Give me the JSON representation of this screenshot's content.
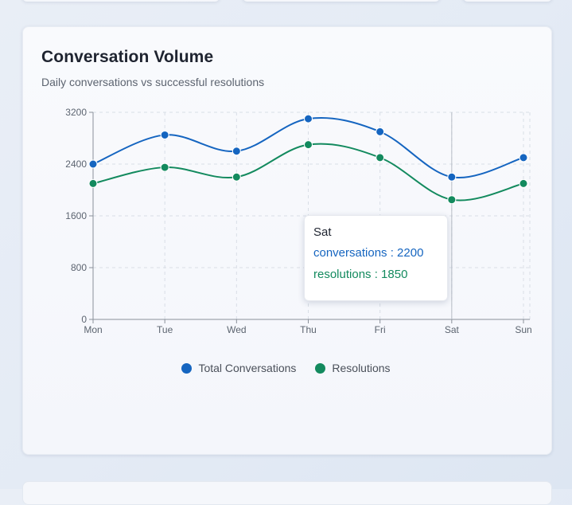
{
  "card": {
    "title": "Conversation Volume",
    "subtitle": "Daily conversations vs successful resolutions"
  },
  "tooltip": {
    "category": "Sat",
    "rows": [
      {
        "key": "conversations",
        "value": 2200,
        "text": "conversations : 2200",
        "color": "#1565c0"
      },
      {
        "key": "resolutions",
        "value": 1850,
        "text": "resolutions : 1850",
        "color": "#138a5e"
      }
    ]
  },
  "legend": {
    "items": [
      {
        "label": "Total Conversations",
        "color": "#1565c0"
      },
      {
        "label": "Resolutions",
        "color": "#138a5e"
      }
    ]
  },
  "chart_data": {
    "type": "line",
    "title": "Conversation Volume",
    "subtitle": "Daily conversations vs successful resolutions",
    "categories": [
      "Mon",
      "Tue",
      "Wed",
      "Thu",
      "Fri",
      "Sat",
      "Sun"
    ],
    "series": [
      {
        "name": "Total Conversations",
        "color": "#1565c0",
        "values": [
          2400,
          2850,
          2600,
          3100,
          2900,
          2200,
          2500
        ]
      },
      {
        "name": "Resolutions",
        "color": "#138a5e",
        "values": [
          2100,
          2350,
          2200,
          2700,
          2500,
          1850,
          2100
        ]
      }
    ],
    "ylim": [
      0,
      3200
    ],
    "yticks": [
      "0",
      "800",
      "1600",
      "2400",
      "3200"
    ],
    "grid": true,
    "smooth": true,
    "legend_position": "bottom",
    "highlighted_category": "Sat"
  }
}
